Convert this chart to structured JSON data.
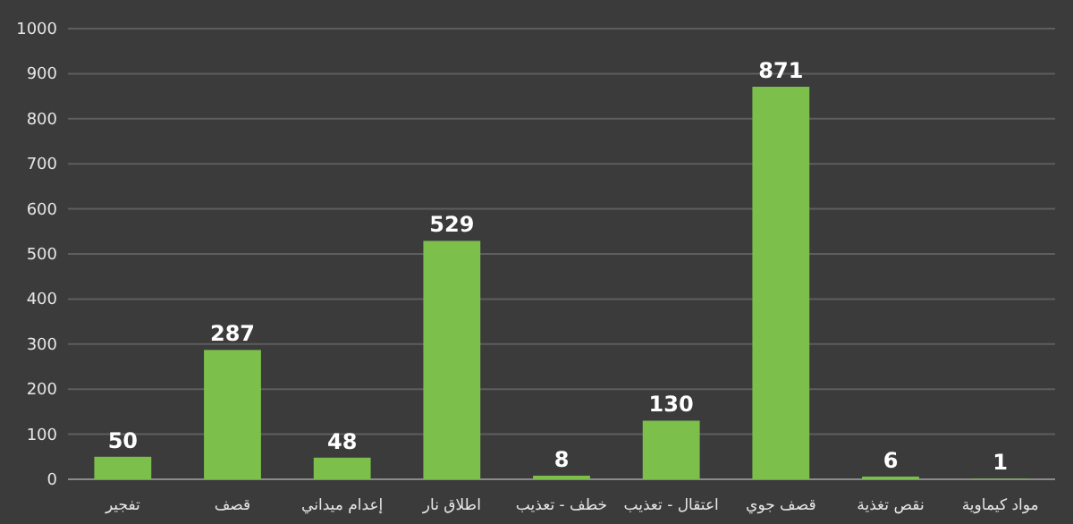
{
  "chart_data": {
    "type": "bar",
    "categories": [
      "تفجير",
      "قصف",
      "إعدام ميداني",
      "اطلاق نار",
      "خطف - تعذيب",
      "اعتقال - تعذيب",
      "قصف جوي",
      "نقص تغذية",
      "مواد كيماوية"
    ],
    "values": [
      50,
      287,
      48,
      529,
      8,
      130,
      871,
      6,
      1
    ],
    "color": "#7cc04b",
    "ylim": [
      0,
      1000
    ],
    "yticks": [
      0,
      100,
      200,
      300,
      400,
      500,
      600,
      700,
      800,
      900,
      1000
    ],
    "grid": "y",
    "data_labels": true
  }
}
